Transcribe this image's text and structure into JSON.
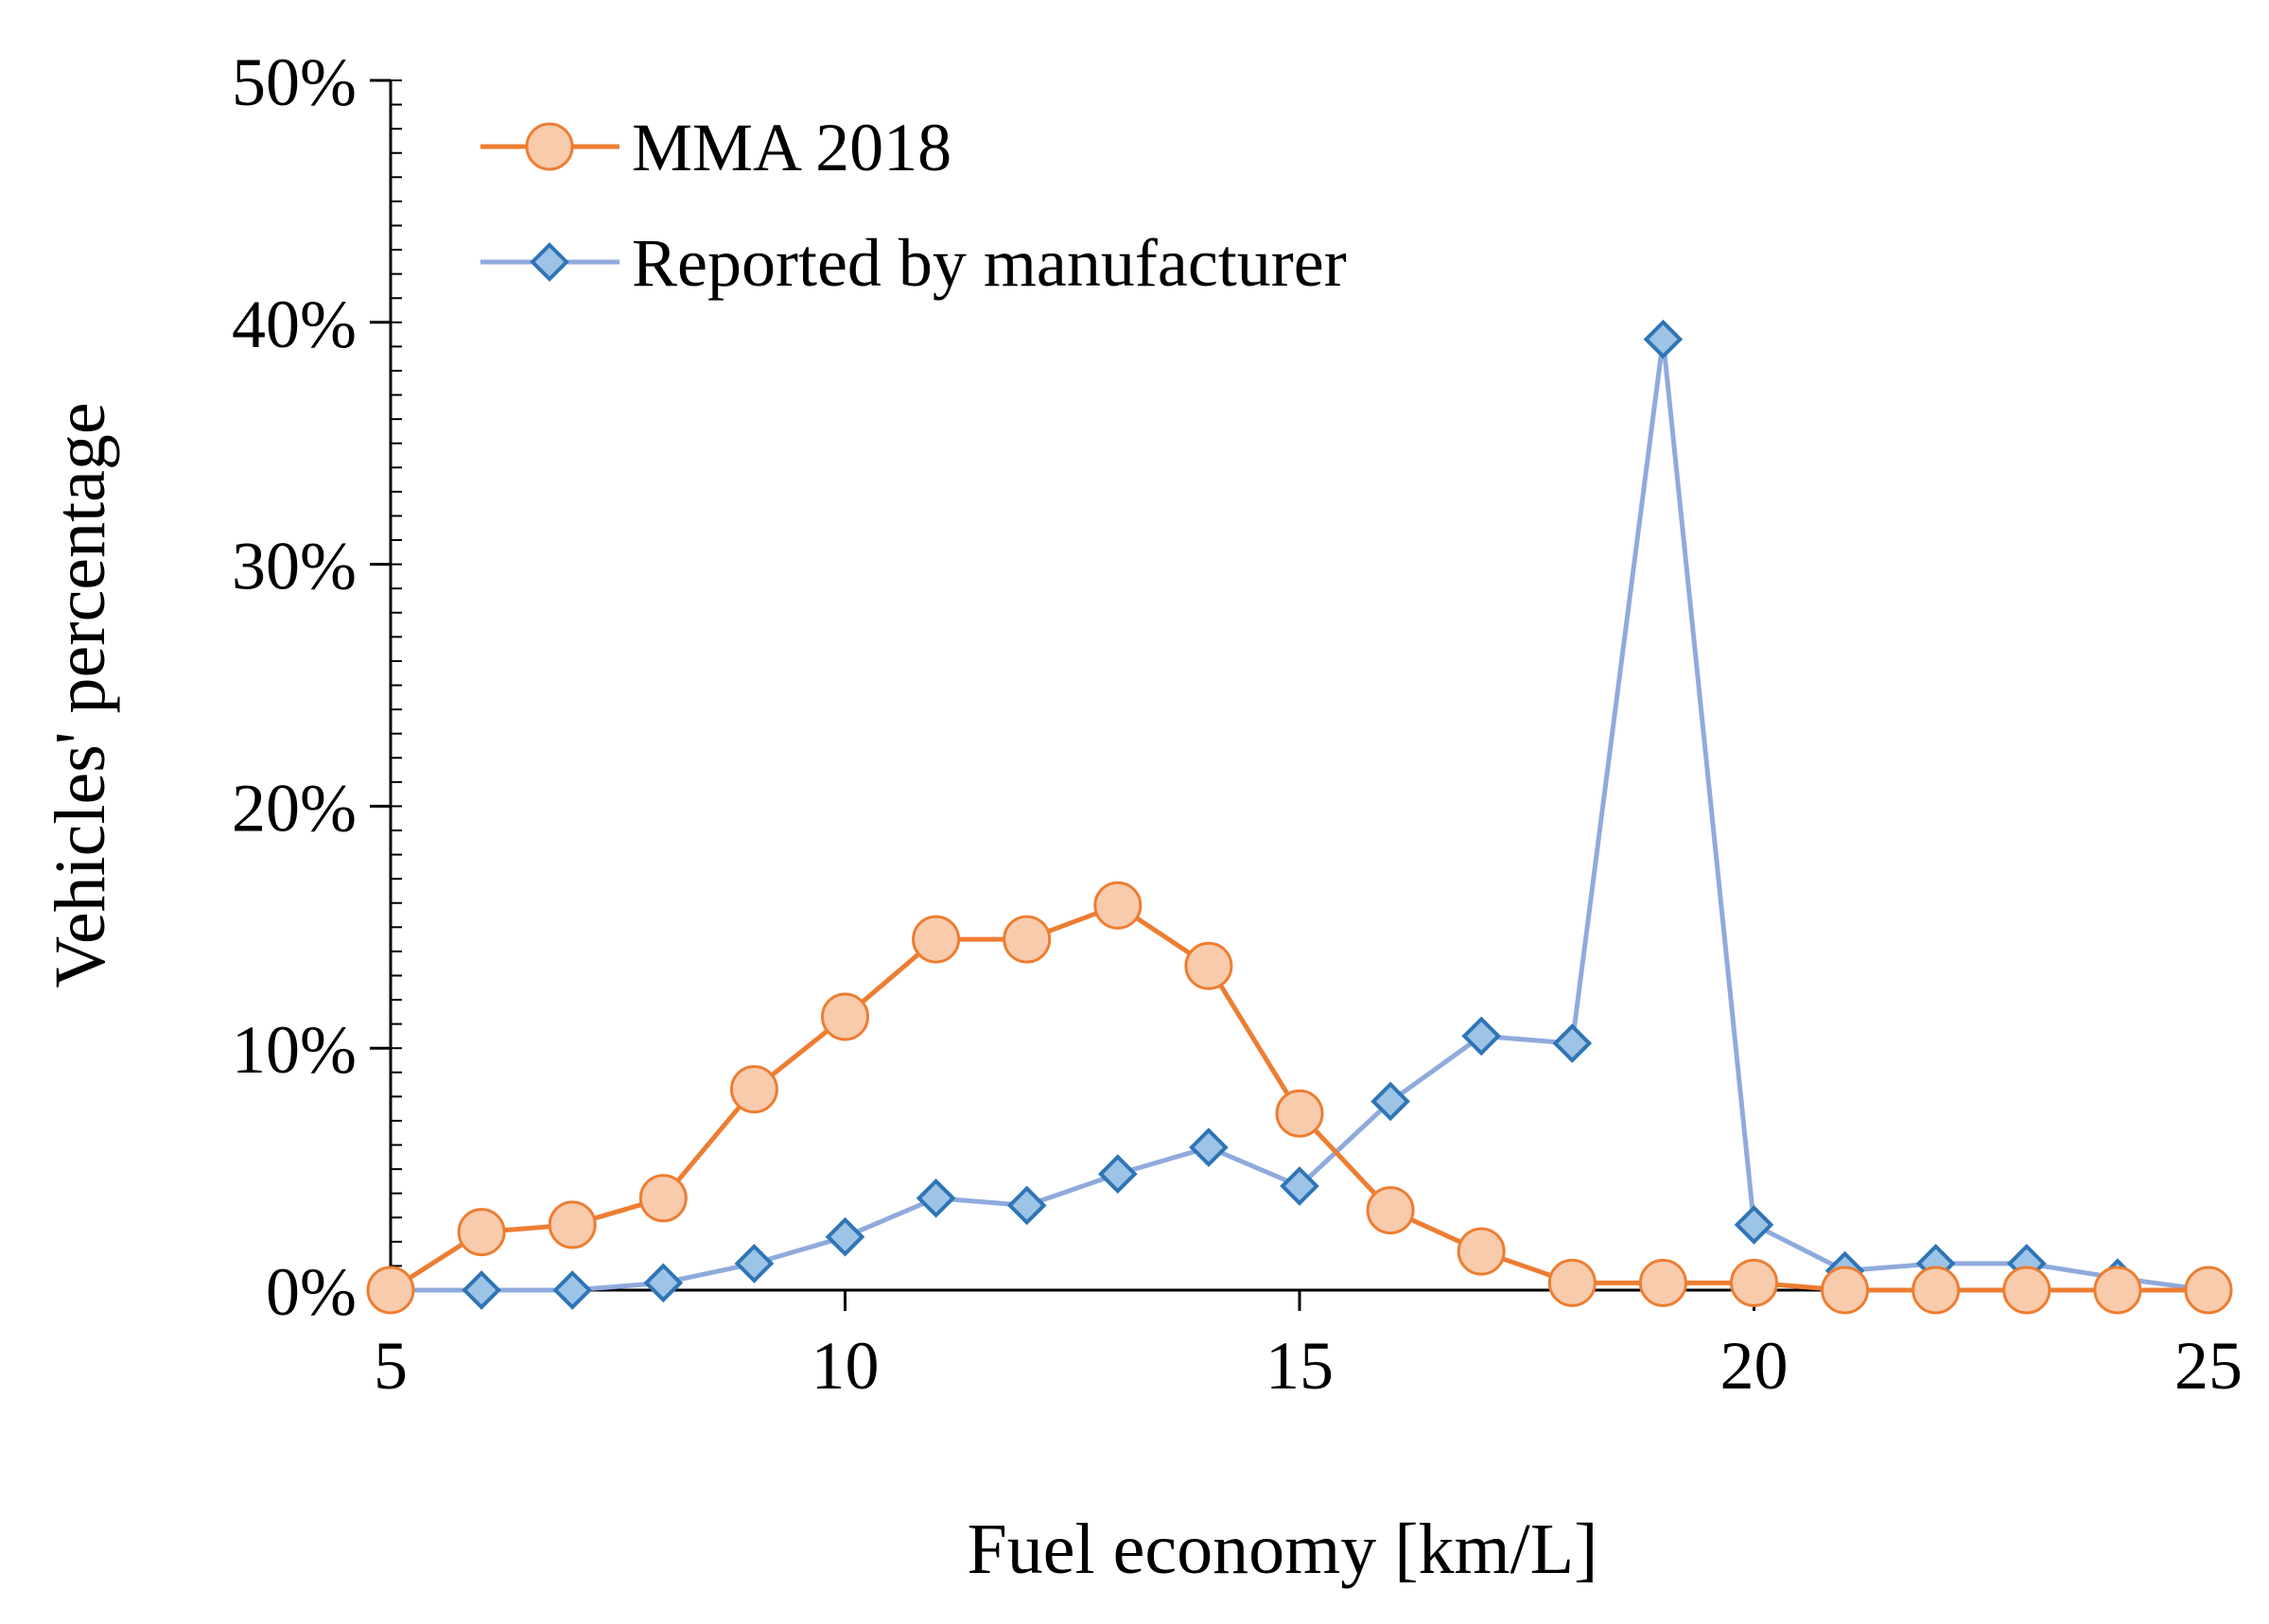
{
  "chart_data": {
    "type": "line",
    "title": "",
    "xlabel": "Fuel economy [km/L]",
    "ylabel": "Vehicles' percentage",
    "xlim": [
      5,
      25
    ],
    "ylim": [
      0,
      50
    ],
    "xticks": [
      5,
      10,
      15,
      20,
      25
    ],
    "xtick_labels": [
      "5",
      "10",
      "15",
      "20",
      "25"
    ],
    "yticks": [
      0,
      10,
      20,
      30,
      40,
      50
    ],
    "ytick_labels": [
      "0%",
      "10%",
      "20%",
      "30%",
      "40%",
      "50%"
    ],
    "y_minor_step": 1,
    "grid": false,
    "legend_position": "top-left",
    "series": [
      {
        "name": "MMA 2018",
        "marker": "circle",
        "line_color": "#ED7D31",
        "marker_fill": "#F8CBAD",
        "marker_edge": "#ED7D31",
        "x": [
          5,
          6,
          7,
          8,
          9,
          10,
          11,
          12,
          13,
          14,
          15,
          16,
          17,
          18,
          19,
          20,
          21,
          22,
          23,
          24,
          25
        ],
        "values": [
          0.0,
          2.4,
          2.7,
          3.8,
          8.3,
          11.3,
          14.5,
          14.5,
          15.9,
          13.4,
          7.3,
          3.3,
          1.6,
          0.3,
          0.3,
          0.3,
          0.0,
          0.0,
          0.0,
          0.0,
          0.0
        ]
      },
      {
        "name": "Reported by manufacturer",
        "marker": "diamond",
        "line_color": "#8FAADC",
        "marker_fill": "#9DC3E6",
        "marker_edge": "#2E75B6",
        "x": [
          5,
          6,
          7,
          8,
          9,
          10,
          11,
          12,
          13,
          14,
          15,
          16,
          17,
          18,
          19,
          20,
          21,
          22,
          23,
          24,
          25
        ],
        "values": [
          0.0,
          0.0,
          0.0,
          0.3,
          1.1,
          2.2,
          3.8,
          3.5,
          4.8,
          5.9,
          4.3,
          7.8,
          10.5,
          10.2,
          39.3,
          2.7,
          0.8,
          1.1,
          1.1,
          0.5,
          0.0
        ]
      }
    ]
  }
}
